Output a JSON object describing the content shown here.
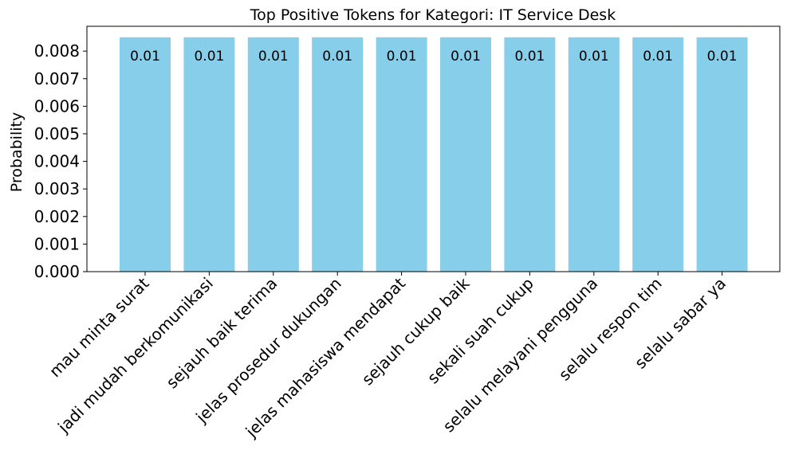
{
  "chart_data": {
    "type": "bar",
    "title": "Top Positive Tokens for Kategori: IT Service Desk",
    "xlabel": "",
    "ylabel": "Probability",
    "categories": [
      "mau minta surat",
      "jadi mudah berkomunikasi",
      "sejauh baik terima",
      "jelas prosedur dukungan",
      "jelas mahasiswa mendapat",
      "sejauh cukup baik",
      "sekali suah cukup",
      "selalu melayani pengguna",
      "selalu respon tim",
      "selalu sabar ya"
    ],
    "values": [
      0.0085,
      0.0085,
      0.0085,
      0.0085,
      0.0085,
      0.0085,
      0.0085,
      0.0085,
      0.0085,
      0.0085
    ],
    "data_labels": [
      "0.01",
      "0.01",
      "0.01",
      "0.01",
      "0.01",
      "0.01",
      "0.01",
      "0.01",
      "0.01",
      "0.01"
    ],
    "ylim": [
      0,
      0.0089
    ],
    "yticks": [
      "0.000",
      "0.001",
      "0.002",
      "0.003",
      "0.004",
      "0.005",
      "0.006",
      "0.007",
      "0.008"
    ],
    "bar_color": "#87CEEB",
    "xtick_rotation_deg": -45,
    "grid": false,
    "legend": "none"
  }
}
